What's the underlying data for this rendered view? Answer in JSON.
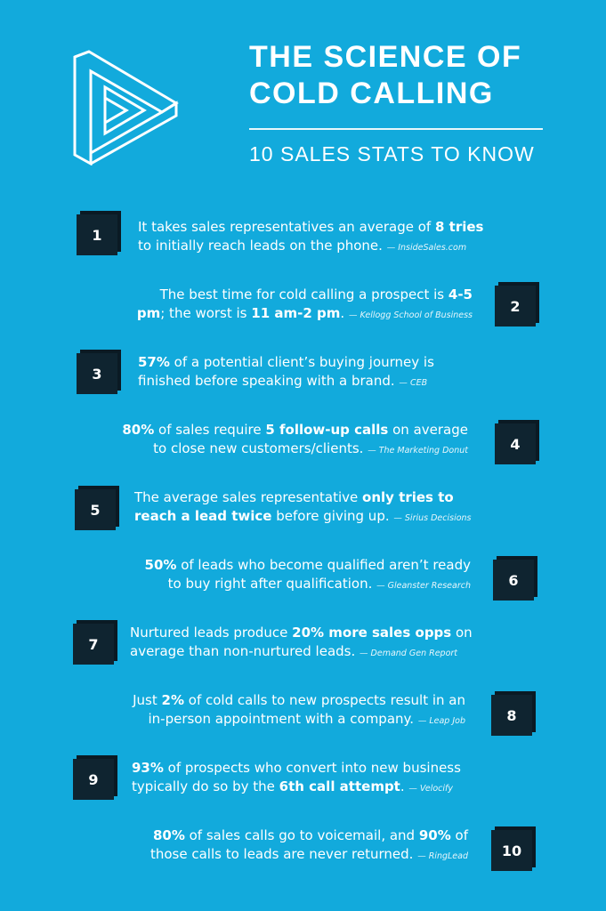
{
  "header": {
    "title_line1": "THE SCIENCE OF",
    "title_line2": "COLD CALLING",
    "subtitle": "10 SALES STATS TO KNOW"
  },
  "logo": {
    "icon": "impossible-triangle-play-logo"
  },
  "stats": [
    {
      "num": "1",
      "line1": [
        "It takes sales representatives an average of ",
        {
          "b": "8 tries"
        }
      ],
      "line2": [
        "to initially reach leads on the phone. "
      ],
      "source": "— InsideSales.com"
    },
    {
      "num": "2",
      "line1": [
        "The best time for cold calling a prospect is ",
        {
          "b": "4-5"
        }
      ],
      "line2": [
        {
          "b": "pm"
        },
        "; the worst is ",
        {
          "b": "11 am-2 pm"
        },
        ". "
      ],
      "source": "— Kellogg School of Business"
    },
    {
      "num": "3",
      "line1": [
        {
          "b": "57%"
        },
        " of a potential client’s buying journey is"
      ],
      "line2": [
        "finished before speaking with a brand. "
      ],
      "source": "— CEB"
    },
    {
      "num": "4",
      "line1": [
        {
          "b": "80%"
        },
        " of sales require ",
        {
          "b": "5 follow-up calls"
        },
        " on average"
      ],
      "line2": [
        "to close new customers/clients. "
      ],
      "source": "— The Marketing Donut"
    },
    {
      "num": "5",
      "line1": [
        "The average sales representative ",
        {
          "b": "only tries to"
        }
      ],
      "line2": [
        {
          "b": "reach a lead twice"
        },
        " before giving up. "
      ],
      "source": "— Sirius Decisions"
    },
    {
      "num": "6",
      "line1": [
        {
          "b": "50%"
        },
        " of leads who become qualified aren’t ready"
      ],
      "line2": [
        "to buy right after qualification. "
      ],
      "source": "— Gleanster Research"
    },
    {
      "num": "7",
      "line1": [
        "Nurtured leads produce ",
        {
          "b": "20% more sales opps"
        },
        " on"
      ],
      "line2": [
        "average than non-nurtured leads. "
      ],
      "source": "— Demand Gen Report"
    },
    {
      "num": "8",
      "line1": [
        "Just ",
        {
          "b": "2%"
        },
        " of cold calls to new prospects result in an"
      ],
      "line2": [
        "in-person appointment with a company. "
      ],
      "source": "— Leap Job"
    },
    {
      "num": "9",
      "line1": [
        {
          "b": "93%"
        },
        " of prospects who convert into new business"
      ],
      "line2": [
        "typically do so by the ",
        {
          "b": "6th call attempt"
        },
        ". "
      ],
      "source": "— Velocify"
    },
    {
      "num": "10",
      "line1": [
        {
          "b": "80%"
        },
        " of sales calls go to voicemail, and ",
        {
          "b": "90%"
        },
        " of"
      ],
      "line2": [
        "those calls to leads are never returned. "
      ],
      "source": "— RingLead"
    }
  ],
  "colors": {
    "background": "#12aadc",
    "box": "#0f2430",
    "text": "#ffffff"
  }
}
